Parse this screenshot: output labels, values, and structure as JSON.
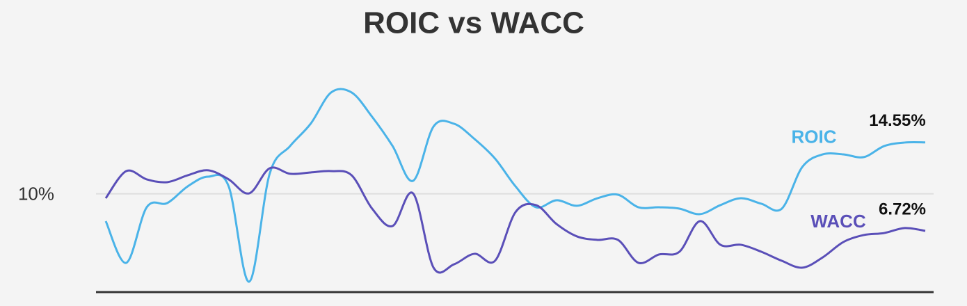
{
  "chart_data": {
    "type": "line",
    "title": "ROIC vs WACC",
    "ylim": [
      1.3,
      21
    ],
    "yticks": [
      {
        "value": 10,
        "label": "10%"
      }
    ],
    "grid": true,
    "series": [
      {
        "name": "ROIC",
        "color": "#4ab3e8",
        "values": [
          7.58,
          3.89,
          8.81,
          9.18,
          10.66,
          11.52,
          10.66,
          2.22,
          11.77,
          14.23,
          16.2,
          18.97,
          18.97,
          16.82,
          14.23,
          11.15,
          15.96,
          16.2,
          14.85,
          13.12,
          10.66,
          8.81,
          9.43,
          8.94,
          9.61,
          9.92,
          8.81,
          8.81,
          8.69,
          8.2,
          9.0,
          9.61,
          9.12,
          8.69,
          12.38,
          13.49,
          13.49,
          13.25,
          14.23,
          14.54,
          14.55
        ],
        "value_labels": [
          null,
          null,
          null,
          null,
          null,
          null,
          null,
          null,
          null,
          null,
          null,
          null,
          null,
          null,
          null,
          null,
          null,
          null,
          null,
          null,
          null,
          null,
          null,
          null,
          null,
          null,
          null,
          null,
          null,
          null,
          null,
          null,
          null,
          null,
          null,
          null,
          null,
          null,
          null,
          null,
          "14.55%"
        ]
      },
      {
        "name": "WACC",
        "color": "#5a4fb8",
        "values": [
          9.61,
          12.01,
          11.28,
          11.03,
          11.64,
          12.08,
          11.28,
          10.04,
          12.26,
          11.77,
          11.89,
          12.01,
          11.64,
          8.69,
          7.15,
          10.04,
          3.46,
          3.76,
          4.69,
          4.07,
          8.38,
          9.0,
          7.33,
          6.23,
          5.92,
          5.92,
          3.89,
          4.63,
          4.87,
          7.58,
          5.49,
          5.49,
          4.87,
          4.07,
          3.46,
          4.38,
          5.73,
          6.35,
          6.53,
          6.97,
          6.72
        ],
        "value_labels": [
          null,
          null,
          null,
          null,
          null,
          null,
          null,
          null,
          null,
          null,
          null,
          null,
          null,
          null,
          null,
          null,
          null,
          null,
          null,
          null,
          null,
          null,
          null,
          null,
          null,
          null,
          null,
          null,
          null,
          null,
          null,
          null,
          null,
          null,
          null,
          null,
          null,
          null,
          null,
          null,
          "6.72%"
        ]
      }
    ]
  }
}
